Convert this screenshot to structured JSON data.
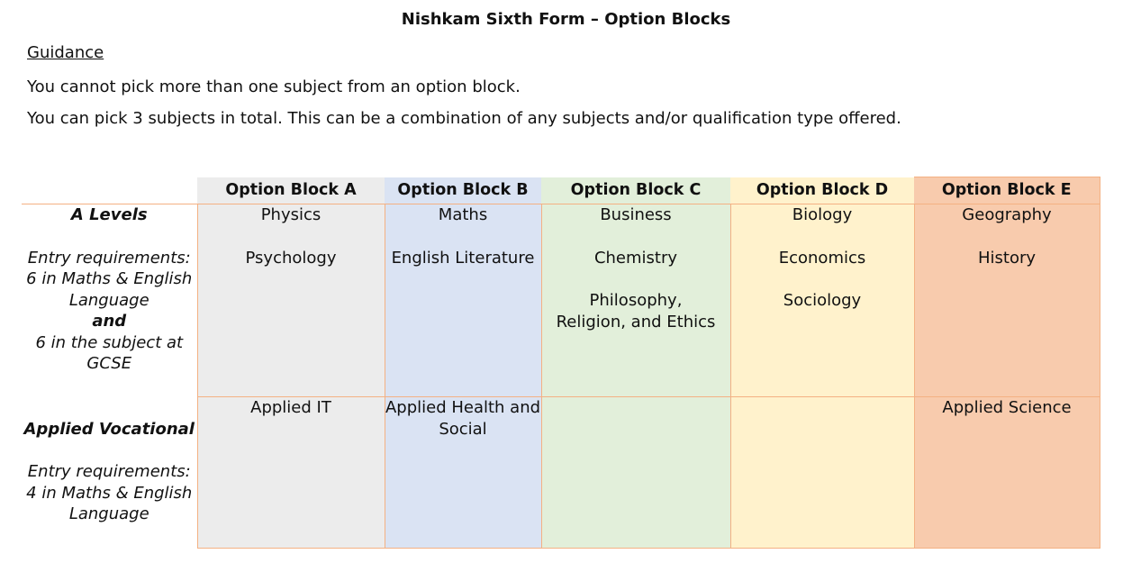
{
  "page": {
    "title": "Nishkam Sixth Form – Option Blocks"
  },
  "guidance": {
    "heading": "Guidance",
    "rules": [
      "You cannot pick more than one subject from an option block.",
      "You can pick 3 subjects in total. This can be a combination of any subjects and/or qualification type offered."
    ]
  },
  "table": {
    "headers": [
      "Option Block A",
      "Option Block B",
      "Option Block C",
      "Option Block D",
      "Option Block E"
    ],
    "header_colors": [
      "#ececec",
      "#dae3f3",
      "#e2efda",
      "#fff2cc",
      "#f8cbad"
    ],
    "border_color": "#f4b183",
    "rows": [
      {
        "label": "A Levels",
        "entry_label": "Entry requirements:",
        "entry_line1": "6 in Maths & English Language",
        "entry_and": "and",
        "entry_line2": "6 in the subject at GCSE",
        "cells": [
          [
            "Physics",
            "Psychology"
          ],
          [
            "Maths",
            "English Literature"
          ],
          [
            "Business",
            "Chemistry",
            "Philosophy, Religion, and Ethics"
          ],
          [
            "Biology",
            "Economics",
            "Sociology"
          ],
          [
            "Geography",
            "History"
          ]
        ]
      },
      {
        "label": "Applied Vocational",
        "entry_label": "Entry requirements:",
        "entry_line1": "4 in Maths & English Language",
        "cells": [
          [
            "Applied IT"
          ],
          [
            "Applied Health and Social"
          ],
          [],
          [],
          [
            "Applied Science"
          ]
        ]
      }
    ]
  }
}
